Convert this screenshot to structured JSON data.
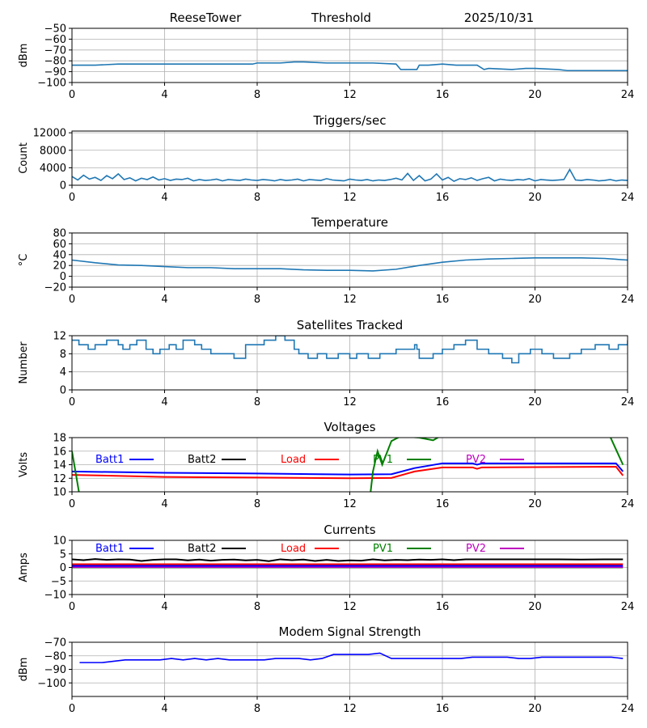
{
  "chart_data": [
    {
      "type": "line",
      "title_parts": [
        "ReeseTower",
        "Threshold",
        "2025/10/31"
      ],
      "ylabel": "dBm",
      "xlim": [
        0,
        24
      ],
      "ylim": [
        -100,
        -50
      ],
      "yticks": [
        -100,
        -90,
        -80,
        -70,
        -60,
        -50
      ],
      "xticks": [
        0,
        4,
        8,
        12,
        16,
        20,
        24
      ],
      "series": [
        {
          "name": "Threshold",
          "color": "#1f77b4",
          "x": [
            0,
            1,
            2,
            3,
            4,
            5,
            6,
            7,
            7.8,
            8,
            9,
            9.6,
            10,
            11,
            12,
            13,
            14,
            14.2,
            14.9,
            15,
            15.4,
            16,
            16.6,
            17.5,
            17.8,
            18,
            19,
            19.6,
            20,
            21,
            21.4,
            22,
            23,
            24
          ],
          "y": [
            -84,
            -84,
            -83,
            -83,
            -83,
            -83,
            -83,
            -83,
            -83,
            -82,
            -82,
            -81,
            -81,
            -82,
            -82,
            -82,
            -83,
            -88,
            -88,
            -84,
            -84,
            -83,
            -84,
            -84,
            -88,
            -87,
            -88,
            -87,
            -87,
            -88,
            -89,
            -89,
            -89,
            -89
          ]
        }
      ]
    },
    {
      "type": "line",
      "title": "Triggers/sec",
      "ylabel": "Count",
      "xlim": [
        0,
        24
      ],
      "ylim": [
        0,
        12400
      ],
      "yticks": [
        0,
        4000,
        8000,
        12000
      ],
      "xticks": [
        0,
        4,
        8,
        12,
        16,
        20,
        24
      ],
      "series": [
        {
          "name": "Triggers",
          "color": "#1f77b4",
          "x_range": [
            0,
            24
          ],
          "y": [
            2000,
            1200,
            2300,
            1400,
            1800,
            1100,
            2200,
            1500,
            2600,
            1300,
            1700,
            1000,
            1600,
            1300,
            1900,
            1200,
            1500,
            1100,
            1400,
            1300,
            1600,
            1000,
            1300,
            1100,
            1200,
            1400,
            1000,
            1300,
            1200,
            1100,
            1400,
            1200,
            1100,
            1300,
            1200,
            1000,
            1300,
            1100,
            1200,
            1400,
            1000,
            1300,
            1200,
            1100,
            1500,
            1200,
            1100,
            1000,
            1400,
            1200,
            1100,
            1300,
            1000,
            1200,
            1100,
            1300,
            1600,
            1200,
            2700,
            1100,
            2200,
            1000,
            1400,
            2600,
            1200,
            1800,
            900,
            1500,
            1300,
            1700,
            1100,
            1500,
            1800,
            1000,
            1400,
            1200,
            1100,
            1300,
            1200,
            1500,
            1000,
            1300,
            1200,
            1100,
            1200,
            1300,
            3600,
            1200,
            1100,
            1300,
            1200,
            1000,
            1100,
            1300,
            1000,
            1200,
            1100
          ]
        }
      ]
    },
    {
      "type": "line",
      "title": "Temperature",
      "ylabel": "°C",
      "xlim": [
        0,
        24
      ],
      "ylim": [
        -20,
        80
      ],
      "yticks": [
        -20,
        0,
        20,
        40,
        60,
        80
      ],
      "xticks": [
        0,
        4,
        8,
        12,
        16,
        20,
        24
      ],
      "series": [
        {
          "name": "Temperature",
          "color": "#1f77b4",
          "x": [
            0,
            1,
            2,
            3,
            4,
            5,
            6,
            7,
            8,
            9,
            10,
            11,
            12,
            13,
            14,
            15,
            16,
            17,
            18,
            19,
            20,
            21,
            22,
            23,
            24
          ],
          "y": [
            30,
            25,
            21,
            20,
            18,
            16,
            16,
            14,
            14,
            14,
            12,
            11,
            11,
            10,
            13,
            20,
            26,
            30,
            32,
            33,
            34,
            34,
            34,
            33,
            30
          ]
        }
      ]
    },
    {
      "type": "step",
      "title": "Satellites Tracked",
      "ylabel": "Number",
      "xlim": [
        0,
        24
      ],
      "ylim": [
        0,
        12
      ],
      "yticks": [
        0,
        4,
        8,
        12
      ],
      "xticks": [
        0,
        4,
        8,
        12,
        16,
        20,
        24
      ],
      "series": [
        {
          "name": "Satellites",
          "color": "#1f77b4",
          "x": [
            0,
            0.3,
            0.7,
            1,
            1.5,
            2,
            2.2,
            2.5,
            2.8,
            3.2,
            3.5,
            3.8,
            4.2,
            4.5,
            4.8,
            5.3,
            5.6,
            6,
            7,
            7.5,
            8.3,
            8.8,
            9.2,
            9.6,
            9.8,
            10.2,
            10.6,
            11,
            11.5,
            12,
            12.3,
            12.8,
            13.3,
            14,
            14.8,
            14.9,
            15,
            15.6,
            16,
            16.5,
            17,
            17.5,
            18,
            18.6,
            19,
            19.3,
            19.8,
            20.3,
            20.8,
            21.5,
            22,
            22.6,
            23.2,
            23.6,
            24
          ],
          "y": [
            11,
            10,
            9,
            10,
            11,
            10,
            9,
            10,
            11,
            9,
            8,
            9,
            10,
            9,
            11,
            10,
            9,
            8,
            7,
            10,
            11,
            12,
            11,
            9,
            8,
            7,
            8,
            7,
            8,
            7,
            8,
            7,
            8,
            9,
            10,
            9,
            7,
            8,
            9,
            10,
            11,
            9,
            8,
            7,
            6,
            8,
            9,
            8,
            7,
            8,
            9,
            10,
            9,
            10,
            11
          ]
        }
      ]
    },
    {
      "type": "line",
      "title": "Voltages",
      "ylabel": "Volts",
      "xlim": [
        0,
        24
      ],
      "ylim": [
        10,
        18
      ],
      "yticks": [
        10,
        12,
        14,
        16,
        18
      ],
      "xticks": [
        0,
        4,
        8,
        12,
        16,
        20,
        24
      ],
      "legend": [
        {
          "label": "Batt1",
          "color": "#0000ff"
        },
        {
          "label": "Batt2",
          "color": "#000000"
        },
        {
          "label": "Load",
          "color": "#ff0000"
        },
        {
          "label": "PV1",
          "color": "#008000"
        },
        {
          "label": "PV2",
          "color": "#bf00bf"
        }
      ],
      "series": [
        {
          "name": "Batt1",
          "color": "#0000ff",
          "x": [
            0,
            4,
            8,
            12,
            13.8,
            14.8,
            16,
            17.3,
            17.5,
            17.7,
            23.5,
            23.8
          ],
          "y": [
            13,
            12.8,
            12.7,
            12.55,
            12.6,
            13.5,
            14.2,
            14.2,
            14.0,
            14.2,
            14.2,
            13.0
          ]
        },
        {
          "name": "Load",
          "color": "#ff0000",
          "x": [
            0,
            4,
            8,
            12,
            13.8,
            14.8,
            16,
            17.3,
            17.5,
            17.7,
            23.5,
            23.8
          ],
          "y": [
            12.5,
            12.2,
            12.1,
            12.0,
            12.05,
            13.0,
            13.6,
            13.6,
            13.4,
            13.6,
            13.7,
            12.4
          ]
        },
        {
          "name": "PV1",
          "color": "#008000",
          "x": [
            0,
            0.3,
            0.5,
            12.7,
            13,
            13.2,
            13.4,
            13.8,
            14.2,
            15,
            15.6,
            15.9,
            16.3,
            23.2,
            23.8
          ],
          "y": [
            16,
            10,
            4,
            4,
            13,
            16,
            14,
            17.5,
            18.2,
            18,
            17.6,
            18.2,
            18.5,
            18.5,
            14
          ]
        }
      ]
    },
    {
      "type": "line",
      "title": "Currents",
      "ylabel": "Amps",
      "xlim": [
        0,
        24
      ],
      "ylim": [
        -10,
        10
      ],
      "yticks": [
        -10,
        -5,
        0,
        5,
        10
      ],
      "xticks": [
        0,
        4,
        8,
        12,
        16,
        20,
        24
      ],
      "legend": [
        {
          "label": "Batt1",
          "color": "#0000ff"
        },
        {
          "label": "Batt2",
          "color": "#000000"
        },
        {
          "label": "Load",
          "color": "#ff0000"
        },
        {
          "label": "PV1",
          "color": "#008000"
        },
        {
          "label": "PV2",
          "color": "#bf00bf"
        }
      ],
      "series": [
        {
          "name": "PV1",
          "color": "#008000",
          "x": [
            0,
            23.8
          ],
          "y": [
            0,
            0
          ]
        },
        {
          "name": "PV2",
          "color": "#bf00bf",
          "x": [
            0,
            23.8
          ],
          "y": [
            0.1,
            0.1
          ]
        },
        {
          "name": "Batt1",
          "color": "#0000ff",
          "x": [
            0,
            23.8
          ],
          "y": [
            0.6,
            0.6
          ]
        },
        {
          "name": "Load",
          "color": "#ff0000",
          "x": [
            0,
            23.8
          ],
          "y": [
            1.2,
            1.2
          ]
        },
        {
          "name": "Batt2",
          "color": "#000000",
          "x": [
            0,
            0.5,
            1,
            1.5,
            2,
            2.5,
            3,
            3.5,
            4,
            4.5,
            5,
            5.5,
            6,
            6.5,
            7,
            7.5,
            8,
            8.5,
            9,
            9.5,
            10,
            10.5,
            11,
            11.5,
            12,
            12.5,
            13,
            13.5,
            14,
            14.5,
            15,
            15.5,
            16,
            16.5,
            17,
            18,
            19,
            20,
            21,
            22,
            23,
            23.8
          ],
          "y": [
            3,
            2.7,
            3.1,
            2.8,
            3,
            2.9,
            2.4,
            2.8,
            3,
            3,
            2.6,
            2.9,
            2.5,
            2.8,
            2.9,
            2.6,
            2.8,
            2.3,
            3,
            2.7,
            2.9,
            2.4,
            2.8,
            2.4,
            2.6,
            2.5,
            3,
            2.6,
            2.8,
            2.7,
            2.9,
            2.8,
            3,
            2.7,
            3,
            3,
            3,
            3,
            3,
            2.9,
            3,
            3
          ]
        }
      ]
    },
    {
      "type": "line",
      "title": "Modem Signal Strength",
      "ylabel": "dBm",
      "xlim": [
        0,
        24
      ],
      "ylim": [
        -110,
        -70
      ],
      "yticks": [
        -100,
        -90,
        -80,
        -70
      ],
      "xticks": [
        0,
        4,
        8,
        12,
        16,
        20,
        24
      ],
      "series": [
        {
          "name": "Modem",
          "color": "#0000ff",
          "x": [
            0.33,
            1.3,
            2.3,
            3.8,
            4.3,
            4.8,
            5.3,
            5.8,
            6.3,
            6.8,
            8.3,
            8.8,
            9.8,
            10.3,
            10.8,
            11.3,
            12.8,
            13.3,
            13.8,
            16.8,
            17.3,
            18.8,
            19.3,
            19.8,
            20.3,
            23.3,
            23.8
          ],
          "y": [
            -85,
            -85,
            -83,
            -83,
            -82,
            -83,
            -82,
            -83,
            -82,
            -83,
            -83,
            -82,
            -82,
            -83,
            -82,
            -79,
            -79,
            -78,
            -82,
            -82,
            -81,
            -81,
            -82,
            -82,
            -81,
            -81,
            -82
          ]
        }
      ]
    }
  ]
}
